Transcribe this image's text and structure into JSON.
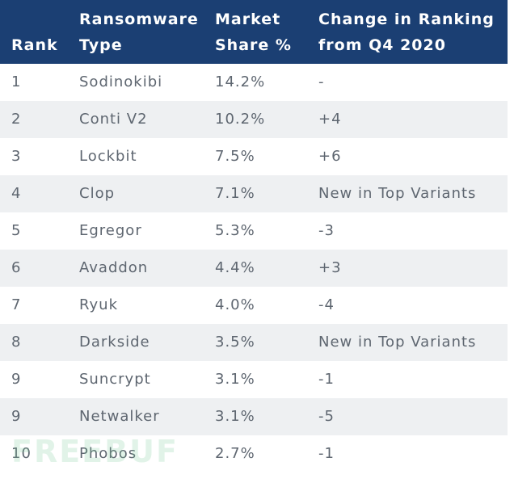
{
  "table": {
    "headers": {
      "rank": "Rank",
      "type_line1": "Ransomware",
      "type_line2": "Type",
      "share_line1": "Market",
      "share_line2": "Share %",
      "change_line1": "Change in Ranking",
      "change_line2": "from Q4 2020"
    },
    "rows": [
      {
        "rank": "1",
        "type": "Sodinokibi",
        "share": "14.2%",
        "change": "-"
      },
      {
        "rank": "2",
        "type": "Conti V2",
        "share": "10.2%",
        "change": "+4"
      },
      {
        "rank": "3",
        "type": "Lockbit",
        "share": "7.5%",
        "change": "+6"
      },
      {
        "rank": "4",
        "type": "Clop",
        "share": "7.1%",
        "change": "New in Top Variants"
      },
      {
        "rank": "5",
        "type": "Egregor",
        "share": "5.3%",
        "change": "-3"
      },
      {
        "rank": "6",
        "type": "Avaddon",
        "share": "4.4%",
        "change": "+3"
      },
      {
        "rank": "7",
        "type": "Ryuk",
        "share": "4.0%",
        "change": "-4"
      },
      {
        "rank": "8",
        "type": "Darkside",
        "share": "3.5%",
        "change": "New in Top Variants"
      },
      {
        "rank": "9",
        "type": "Suncrypt",
        "share": "3.1%",
        "change": "-1"
      },
      {
        "rank": "9",
        "type": "Netwalker",
        "share": "3.1%",
        "change": "-5"
      },
      {
        "rank": "10",
        "type": "Phobos",
        "share": "2.7%",
        "change": "-1"
      }
    ]
  },
  "watermark": "FREEBUF",
  "colors": {
    "header_bg": "#1b3f73",
    "header_text": "#ffffff",
    "row_alt_bg": "#eef0f2",
    "body_text": "#5e6670"
  }
}
